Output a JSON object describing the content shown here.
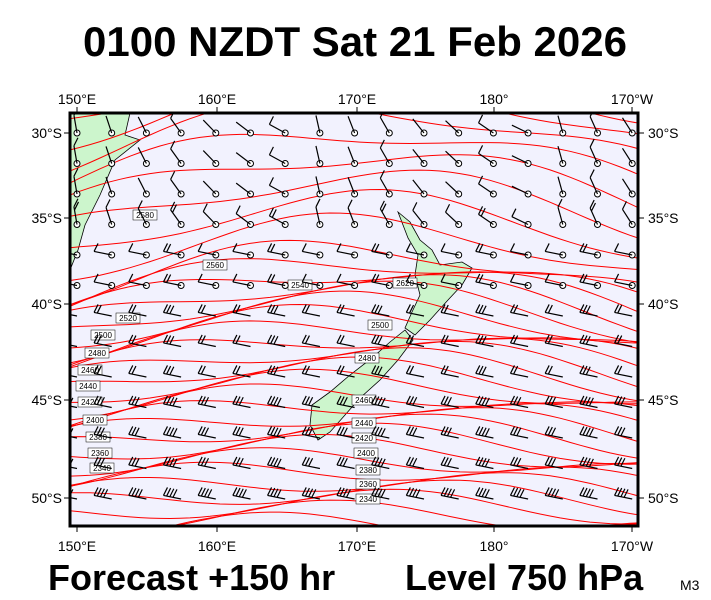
{
  "title": "0100 NZDT Sat 21 Feb 2026",
  "top_lon_labels": [
    "150°E",
    "160°E",
    "170°E",
    "180°",
    "170°W"
  ],
  "bottom_lon_labels": [
    "150°E",
    "160°E",
    "170°E",
    "180°",
    "170°W"
  ],
  "left_lat_labels": [
    "30°S",
    "35°S",
    "40°S",
    "45°S",
    "50°S"
  ],
  "right_lat_labels": [
    "30°S",
    "35°S",
    "40°S",
    "45°S",
    "50°S"
  ],
  "contour_labels": [
    "2580",
    "2560",
    "2540",
    "2520",
    "2500",
    "2480",
    "2460",
    "2440",
    "2420",
    "2400",
    "2380",
    "2360",
    "2340",
    "2620",
    "2500",
    "2480",
    "2460",
    "2440",
    "2420",
    "2400",
    "2380",
    "2360",
    "2340"
  ],
  "footer": {
    "forecast": "Forecast +150 hr",
    "level": "Level 750 hPa",
    "model": "M3"
  }
}
